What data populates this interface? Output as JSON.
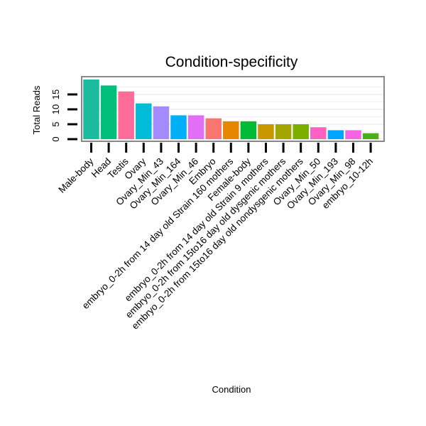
{
  "chart_data": {
    "type": "bar",
    "title": "Condition-specificity",
    "xlabel": "Condition",
    "ylabel": "Total Reads",
    "ylim": [
      0,
      20
    ],
    "yticks": [
      0,
      5,
      10,
      15
    ],
    "grid": true,
    "legend": "none",
    "categories": [
      "Male-body",
      "Head",
      "Testis",
      "Ovary",
      "Ovary_Min_43",
      "Ovary_Min_164",
      "Ovary_Min_46",
      "Embryo",
      "embryo_0-2h from 14 day old Strain 160 mothers",
      "Female-body",
      "embryo_0-2h from 14 day old Strain 9 mothers",
      "embryo_0-2h from 15to16 day old dysgenic mothers",
      "embryo_0-2h from 15to16 day old nondysgenic mothers",
      "Ovary_Min_50",
      "Ovary_Min_193",
      "Ovary_Min_98",
      "embryo_10-12h"
    ],
    "values": [
      20,
      18,
      16,
      12,
      11,
      8,
      8,
      7,
      6,
      6,
      5,
      5,
      5,
      4,
      3,
      3,
      2
    ],
    "colors": [
      "#1ABC9C",
      "#00BF7D",
      "#FF6C9A",
      "#00BCD8",
      "#A58AFF",
      "#00B0F6",
      "#E26EF7",
      "#F8766D",
      "#E58700",
      "#00BA38",
      "#C99800",
      "#A3A500",
      "#7CAE00",
      "#FF61C3",
      "#00A5FF",
      "#F564E3",
      "#4DAF18"
    ]
  }
}
